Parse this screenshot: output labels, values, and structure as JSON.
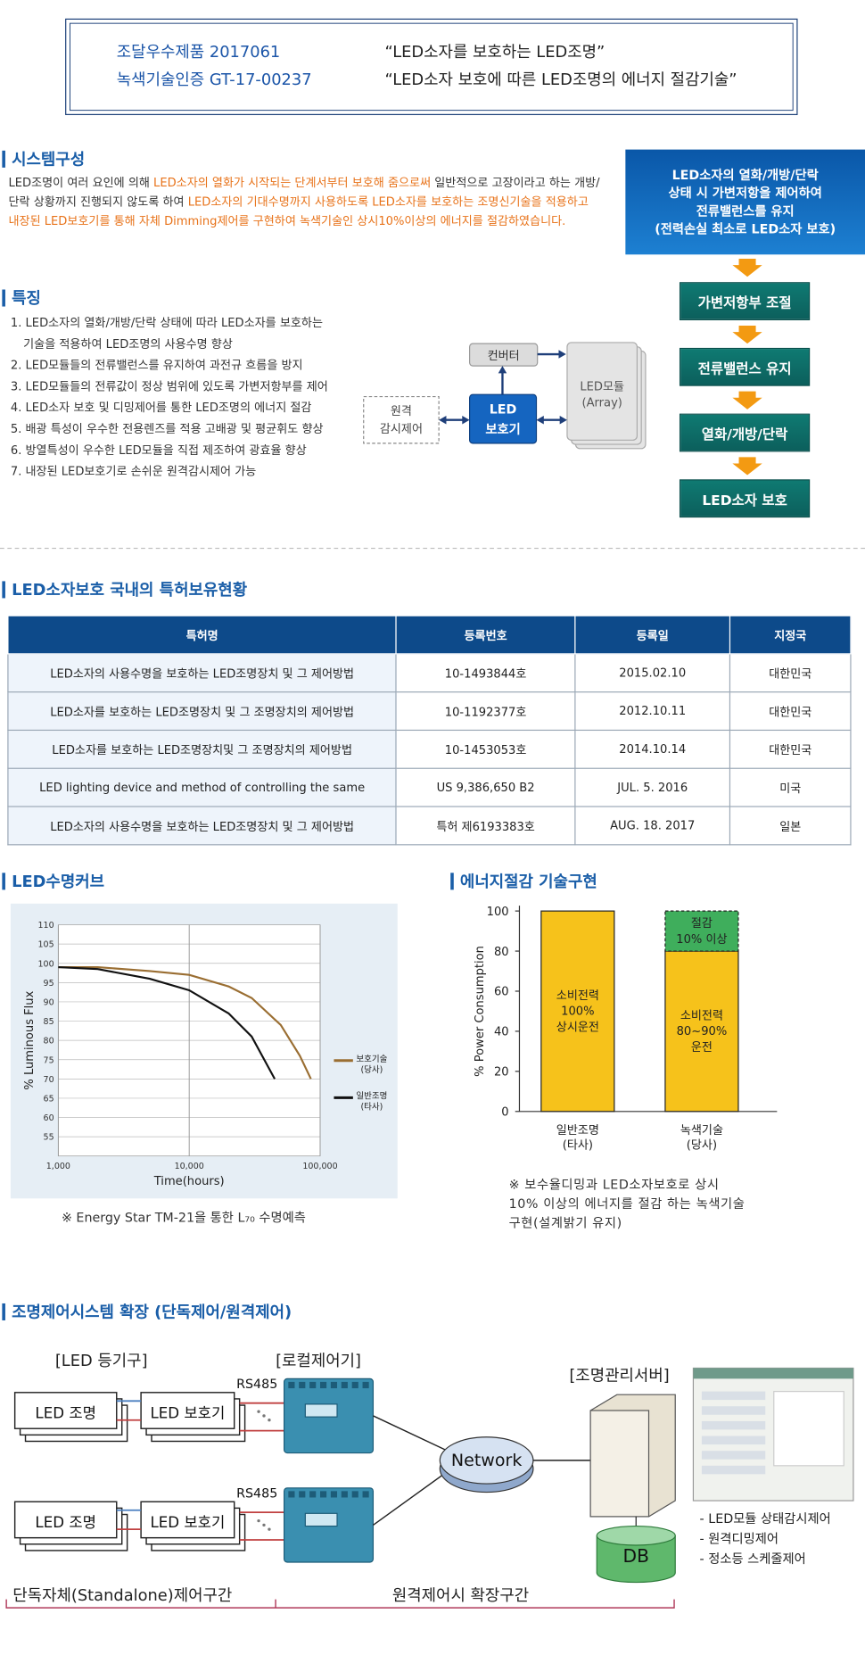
{
  "header": {
    "left": [
      "조달우수제품 2017061",
      "녹색기술인증 GT-17-00237"
    ],
    "right": [
      "“LED소자를 보호하는 LED조명”",
      "“LED소자 보호에 따른 LED조명의 에너지 절감기술”"
    ]
  },
  "system": {
    "title": "시스템구성",
    "paragraph": [
      {
        "text": "LED조명이 여러 요인에 의해 ",
        "highlight": false
      },
      {
        "text": "LED소자의 열화가 시작되는 단계서부터 보호해 줌으로써",
        "highlight": true
      },
      {
        "text": " 일반적으로 고장이라고 하는 개방/단락 상황까지 진행되지 않도록 하여 ",
        "highlight": false
      },
      {
        "text": "LED소자의 기대수명까지 사용하도록 LED소자를 보호하는 조명신기술을 적용하고 내장된 LED보호기를 통해 자체 Dimming제어를 구현하여 녹색기술인 상시10%이상의 에너지를 절감하였습니다.",
        "highlight": true
      }
    ],
    "flow_box": [
      "LED소자의 열화/개방/단락",
      "상태 시 가변저항을 제어하여",
      "전류밸런스를 유지",
      "(전력손실 최소로 LED소자 보호)"
    ],
    "flow_steps": [
      "가변저항부 조절",
      "전류밸런스 유지",
      "열화/개방/단락",
      "LED소자 보호"
    ]
  },
  "features": {
    "title": "특징",
    "items": [
      [
        "1. LED소자의 열화/개방/단락 상태에 따라 LED소자를 보호하는",
        "기술을 적용하여 LED조명의 사용수명 향상"
      ],
      [
        "2. LED모듈들의 전류밸런스를 유지하여 과전규 흐름을 방지"
      ],
      [
        "3. LED모듈들의 전류값이 정상 범위에 있도록 가변저항부를 제어"
      ],
      [
        "4. LED소자 보호 및 디밍제어를 통한 LED조명의 에너지 절감"
      ],
      [
        "5. 배광 특성이 우수한 전용렌즈를 적용 고배광 및 평균휘도 향상"
      ],
      [
        "6. 방열특성이 우수한 LED모듈을 직접 제조하여 광효율 향상"
      ],
      [
        "7. 내장된 LED보호기로 손쉬운 원격감시제어 가능"
      ]
    ],
    "diagram": {
      "converter": "컨버터",
      "module": [
        "LED모듈",
        "(Array)"
      ],
      "protector": [
        "LED",
        "보호기"
      ],
      "remote": [
        "원격",
        "감시제어"
      ]
    }
  },
  "patents": {
    "title": "LED소자보호 국내의 특허보유현황",
    "columns": [
      "특허명",
      "등록번호",
      "등록일",
      "지정국"
    ],
    "rows": [
      [
        "LED소자의 사용수명을 보호하는 LED조명장치 및 그 제어방법",
        "10-1493844호",
        "2015.02.10",
        "대한민국"
      ],
      [
        "LED소자를 보호하는 LED조명장치 및 그 조명장치의 제어방법",
        "10-1192377호",
        "2012.10.11",
        "대한민국"
      ],
      [
        "LED소자를 보호하는 LED조명장치및 그 조명장치의 제어방법",
        "10-1453053호",
        "2014.10.14",
        "대한민국"
      ],
      [
        "LED lighting device and method of controlling the same",
        "US 9,386,650 B2",
        "JUL. 5. 2016",
        "미국"
      ],
      [
        "LED소자의 사용수명을 보호하는 LED조명장치 및 그 제어방법",
        "특허 제6193383호",
        "AUG. 18. 2017",
        "일본"
      ]
    ]
  },
  "chart_data": [
    {
      "type": "line",
      "title": "LED수명커브",
      "xlabel": "Time(hours)",
      "ylabel": "% Luminous Flux",
      "log_x": true,
      "grid": true,
      "xlim": [
        1000,
        100000
      ],
      "xticks": [
        {
          "value": 1000,
          "label": "1,000"
        },
        {
          "value": 10000,
          "label": "10,000"
        },
        {
          "value": 100000,
          "label": "100,000"
        }
      ],
      "ylim": [
        50,
        110
      ],
      "yticks": [
        55,
        60,
        65,
        70,
        75,
        80,
        85,
        90,
        95,
        100,
        105,
        110
      ],
      "legend": "right",
      "series": [
        {
          "name": "보호기술\n(당사)",
          "color": "#9a6e32",
          "x": [
            1000,
            2000,
            5000,
            10000,
            20000,
            30000,
            50000,
            70000,
            85000
          ],
          "values": [
            99,
            99,
            98,
            97,
            94,
            91,
            84,
            76,
            70
          ]
        },
        {
          "name": "일반조명\n(타사)",
          "color": "#111111",
          "x": [
            1000,
            2000,
            5000,
            10000,
            20000,
            30000,
            45000
          ],
          "values": [
            99,
            98.5,
            96,
            93,
            87,
            81,
            70
          ]
        }
      ],
      "note": "※ Energy Star TM-21을 통한 L₇₀ 수명예측"
    },
    {
      "type": "bar",
      "stacked": true,
      "title": "에너지절감 기술구현",
      "ylabel": "% Power Consumption",
      "categories": [
        "일반조명\n(타사)",
        "녹색기술\n(당사)"
      ],
      "ylim": [
        0,
        100
      ],
      "yticks": [
        0,
        20,
        40,
        60,
        80,
        100
      ],
      "series": [
        {
          "color": "#f6c21b",
          "values": [
            100,
            80
          ]
        },
        {
          "color": "#3fae5c",
          "values": [
            null,
            20
          ],
          "dashed": true
        }
      ],
      "annotations": [
        "소비전력\n100%\n상시운전",
        "소비전력\n80~90%\n운전",
        "절감\n10% 이상"
      ],
      "note": "※ 보수율디밍과 LED소자보호로 상시\n10% 이상의 에너지를 절감 하는 녹색기술\n구현(설계밝기 유지)"
    }
  ],
  "expansion": {
    "title": "조명제어시스템 확장 (단독제어/원격제어)",
    "groups": [
      "[LED 등기구]",
      "[로컬제어기]",
      "[조명관리서버]"
    ],
    "rows": [
      {
        "lamp": "LED 조명",
        "protector": "LED 보호기",
        "bus": "RS485"
      },
      {
        "lamp": "LED 조명",
        "protector": "LED 보호기",
        "bus": "RS485"
      }
    ],
    "network": "Network",
    "db": "DB",
    "features": [
      "- LED모듈 상태감시제어",
      "- 원격디밍제어",
      "- 정소등 스케줄제어"
    ],
    "zones": [
      "단독자체(Standalone)제어구간",
      "원격제어시 확장구간"
    ]
  }
}
